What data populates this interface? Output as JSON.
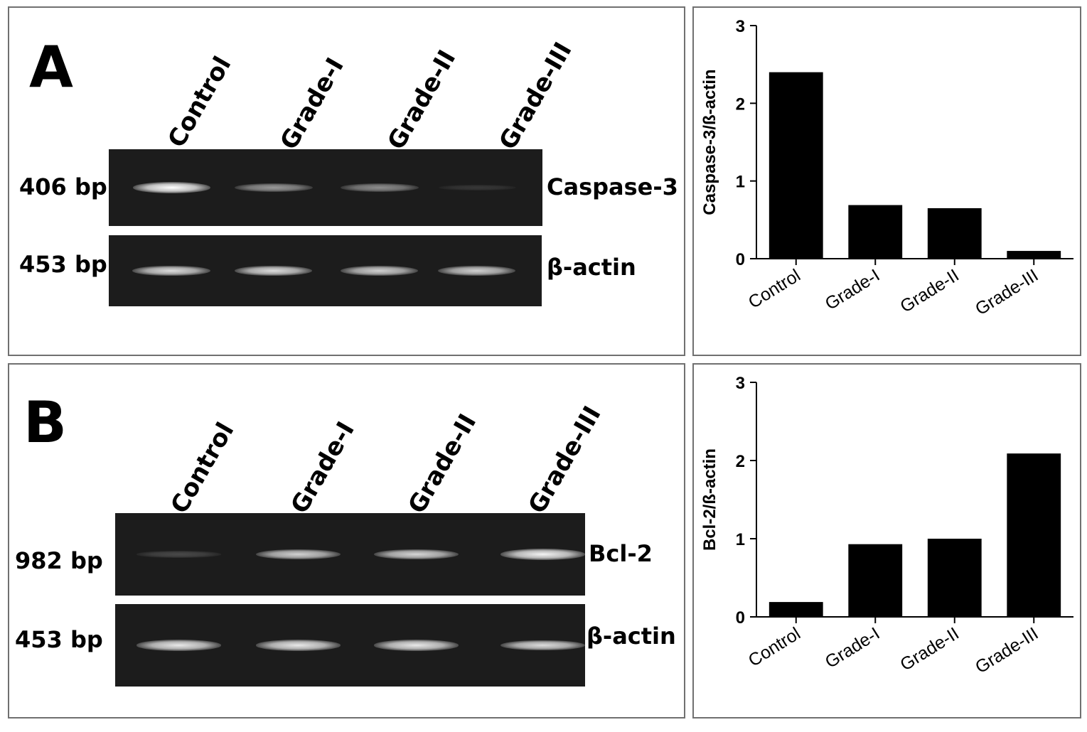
{
  "panel_a": {
    "letter": "A",
    "lanes": [
      "Control",
      "Grade-I",
      "Grade-II",
      "Grade-III"
    ],
    "gels": [
      {
        "bp_label": "406 bp",
        "gene_label": "Caspase-3",
        "band_intensity": [
          1.0,
          0.55,
          0.5,
          0.12
        ]
      },
      {
        "bp_label": "453 bp",
        "gene_label": "β-actin",
        "band_intensity": [
          0.85,
          0.85,
          0.8,
          0.8
        ]
      }
    ]
  },
  "panel_b": {
    "letter": "B",
    "lanes": [
      "Control",
      "Grade-I",
      "Grade-II",
      "Grade-III"
    ],
    "gels": [
      {
        "bp_label": "982 bp",
        "gene_label": "Bcl-2",
        "band_intensity": [
          0.2,
          0.8,
          0.82,
          0.95
        ]
      },
      {
        "bp_label": "453 bp",
        "gene_label": "β-actin",
        "band_intensity": [
          0.9,
          0.9,
          0.9,
          0.85
        ]
      }
    ]
  },
  "chart_data": [
    {
      "type": "bar",
      "categories": [
        "Control",
        "Grade-I",
        "Grade-II",
        "Grade-III"
      ],
      "values": [
        2.4,
        0.69,
        0.65,
        0.1
      ],
      "title": "",
      "xlabel": "",
      "ylabel": "Caspase-3/ß-actin",
      "ylim": [
        0,
        3
      ],
      "yticks": [
        "0",
        "1",
        "2",
        "3"
      ],
      "bar_color": "#000000"
    },
    {
      "type": "bar",
      "categories": [
        "Control",
        "Grade-I",
        "Grade-II",
        "Grade-III"
      ],
      "values": [
        0.19,
        0.93,
        1.0,
        2.09
      ],
      "title": "",
      "xlabel": "",
      "ylabel": "Bcl-2/ß-actin",
      "ylim": [
        0,
        3
      ],
      "yticks": [
        "0",
        "1",
        "2",
        "3"
      ],
      "bar_color": "#000000"
    }
  ]
}
